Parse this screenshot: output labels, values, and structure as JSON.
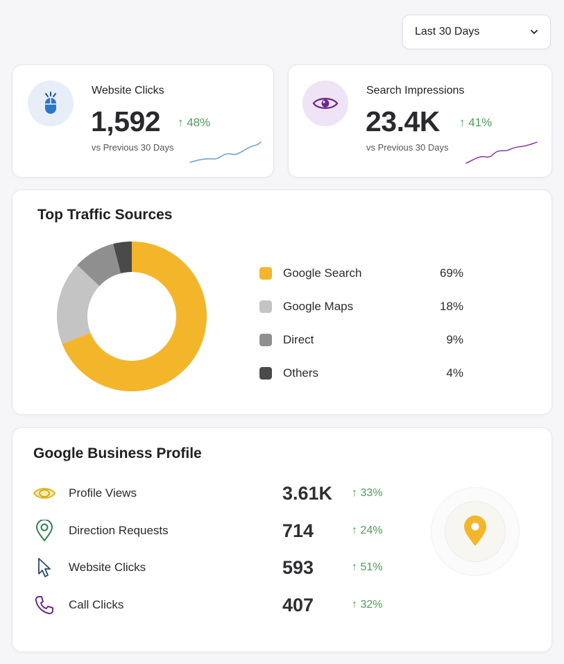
{
  "range_selector": {
    "label": "Last 30 Days"
  },
  "kpis": [
    {
      "title": "Website Clicks",
      "value": "1,592",
      "delta": "↑ 48%",
      "sub": "vs Previous 30 Days",
      "icon": "mouse-icon",
      "color": "#1f6fbf"
    },
    {
      "title": "Search Impressions",
      "value": "23.4K",
      "delta": "↑ 41%",
      "sub": "vs Previous 30 Days",
      "icon": "eye-icon",
      "color": "#7a2f9a"
    }
  ],
  "traffic": {
    "title": "Top Traffic Sources",
    "chart_data": {
      "type": "pie",
      "categories": [
        "Google Search",
        "Google Maps",
        "Direct",
        "Others"
      ],
      "values": [
        69,
        18,
        9,
        4
      ],
      "colors": [
        "#f3b62b",
        "#c4c4c4",
        "#8f8f8f",
        "#4a4a4a"
      ]
    },
    "legend": [
      {
        "name": "Google Search",
        "pct": "69%",
        "color": "#f3b62b"
      },
      {
        "name": "Google Maps",
        "pct": "18%",
        "color": "#c4c4c4"
      },
      {
        "name": "Direct",
        "pct": "9%",
        "color": "#8f8f8f"
      },
      {
        "name": "Others",
        "pct": "4%",
        "color": "#4a4a4a"
      }
    ]
  },
  "profile": {
    "title": "Google Business Profile",
    "metrics": [
      {
        "label": "Profile Views",
        "value": "3.61K",
        "delta": "↑ 33%",
        "icon": "eye-icon"
      },
      {
        "label": "Direction Requests",
        "value": "714",
        "delta": "↑ 24%",
        "icon": "location-pin-icon"
      },
      {
        "label": "Website Clicks",
        "value": "593",
        "delta": "↑ 51%",
        "icon": "cursor-icon"
      },
      {
        "label": "Call Clicks",
        "value": "407",
        "delta": "↑ 32%",
        "icon": "phone-icon"
      }
    ],
    "accent": "#f3b62b"
  }
}
